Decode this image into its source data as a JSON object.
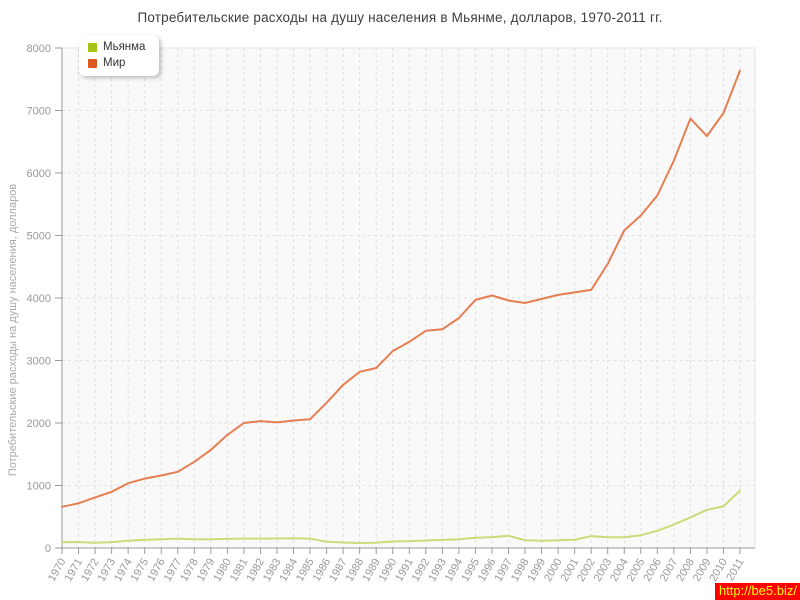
{
  "title": "Потребительские расходы на душу населения в Мьянме, долларов, 1970-2011 гг.",
  "watermark": "http://be5.biz/",
  "axes": {
    "y_ticks": [
      0,
      1000,
      2000,
      3000,
      4000,
      5000,
      6000,
      7000,
      8000
    ],
    "x_first_year": 1970,
    "x_last_year": 2011
  },
  "colors": {
    "myanmar_legend": "#a6c216",
    "myanmar_line": "#c9dc78",
    "world_legend": "#dc5a1e",
    "world_line": "#e67e52",
    "plot_bg": "#f9f9f9",
    "plot_border": "#e3e3e3",
    "grid": "#dfdfdf",
    "axis": "#999999",
    "tick_text": "#999999"
  },
  "chart_data": {
    "type": "line",
    "title": "Потребительские расходы на душу населения в Мьянме, долларов, 1970-2011 гг.",
    "xlabel": "",
    "ylabel": "Потребительские расходы на душу населения, долларов",
    "ylim": [
      0,
      8000
    ],
    "ytick_step": 1000,
    "grid": "dashed",
    "legend_position": "top-left",
    "x": [
      1970,
      1971,
      1972,
      1973,
      1974,
      1975,
      1976,
      1977,
      1978,
      1979,
      1980,
      1981,
      1982,
      1983,
      1984,
      1985,
      1986,
      1987,
      1988,
      1989,
      1990,
      1991,
      1992,
      1993,
      1994,
      1995,
      1996,
      1997,
      1998,
      1999,
      2000,
      2001,
      2002,
      2003,
      2004,
      2005,
      2006,
      2007,
      2008,
      2009,
      2010,
      2011
    ],
    "series": [
      {
        "name": "Мьянма",
        "legend_color": "#a6c216",
        "line_color": "#c9dc78",
        "values": [
          95,
          95,
          85,
          95,
          115,
          130,
          140,
          150,
          138,
          140,
          146,
          152,
          150,
          152,
          155,
          150,
          100,
          88,
          80,
          85,
          104,
          111,
          120,
          130,
          140,
          164,
          174,
          196,
          125,
          116,
          125,
          131,
          190,
          172,
          172,
          205,
          276,
          375,
          490,
          612,
          665,
          920
        ]
      },
      {
        "name": "Мир",
        "legend_color": "#dc5a1e",
        "line_color": "#e67e52",
        "values": [
          660,
          715,
          810,
          900,
          1035,
          1110,
          1160,
          1220,
          1380,
          1570,
          1810,
          2000,
          2030,
          2010,
          2040,
          2060,
          2325,
          2610,
          2820,
          2880,
          3150,
          3300,
          3475,
          3500,
          3680,
          3970,
          4040,
          3960,
          3920,
          3985,
          4050,
          4090,
          4130,
          4545,
          5080,
          5320,
          5640,
          6200,
          6870,
          6590,
          6960,
          7640
        ]
      }
    ]
  }
}
